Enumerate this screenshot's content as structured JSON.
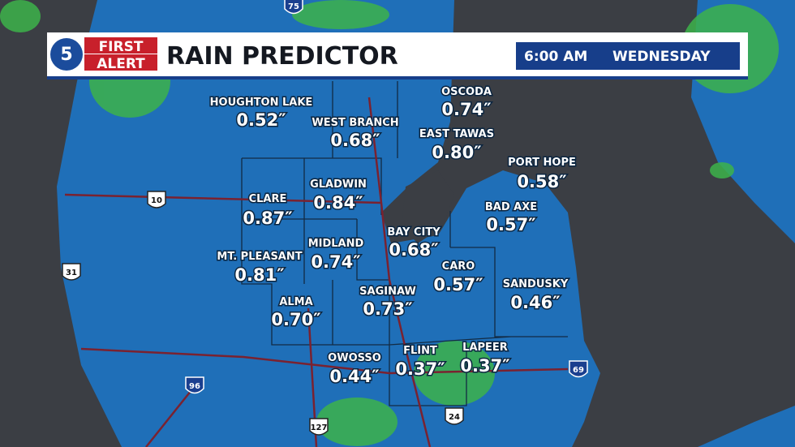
{
  "header": {
    "logo": {
      "number": "5",
      "line1": "FIRST",
      "line2": "ALERT"
    },
    "title": "RAIN PREDICTOR",
    "time": "6:00 AM",
    "day": "WEDNESDAY"
  },
  "locations": [
    {
      "name": "HOUGHTON LAKE",
      "amount": "0.52″"
    },
    {
      "name": "WEST BRANCH",
      "amount": "0.68″"
    },
    {
      "name": "OSCODA",
      "amount": "0.74″"
    },
    {
      "name": "EAST TAWAS",
      "amount": "0.80″"
    },
    {
      "name": "PORT HOPE",
      "amount": "0.58″"
    },
    {
      "name": "GLADWIN",
      "amount": "0.84″"
    },
    {
      "name": "CLARE",
      "amount": "0.87″"
    },
    {
      "name": "BAD AXE",
      "amount": "0.57″"
    },
    {
      "name": "BAY CITY",
      "amount": "0.68″"
    },
    {
      "name": "MIDLAND",
      "amount": "0.74″"
    },
    {
      "name": "MT. PLEASANT",
      "amount": "0.81″"
    },
    {
      "name": "CARO",
      "amount": "0.57″"
    },
    {
      "name": "SANDUSKY",
      "amount": "0.46″"
    },
    {
      "name": "SAGINAW",
      "amount": "0.73″"
    },
    {
      "name": "ALMA",
      "amount": "0.70″"
    },
    {
      "name": "OWOSSO",
      "amount": "0.44″"
    },
    {
      "name": "FLINT",
      "amount": "0.37″"
    },
    {
      "name": "LAPEER",
      "amount": "0.37″"
    }
  ],
  "highways": [
    "75",
    "10",
    "31",
    "96",
    "127",
    "24",
    "69"
  ]
}
